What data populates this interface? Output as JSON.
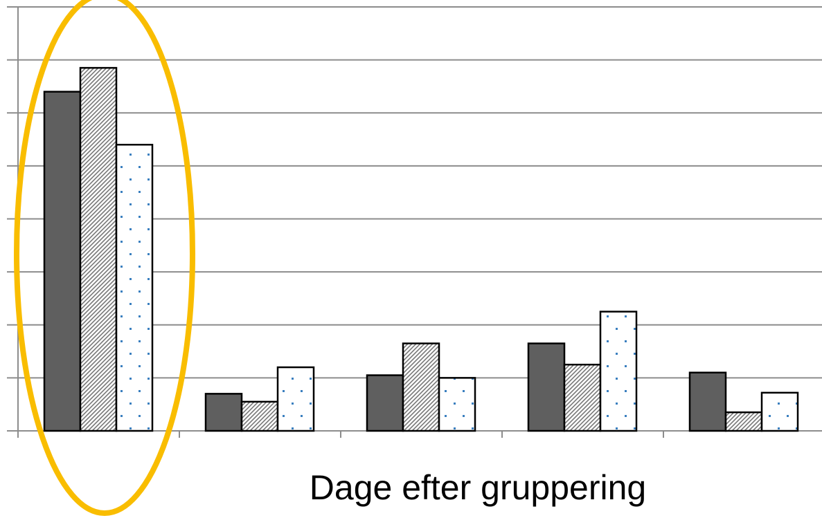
{
  "chart_data": {
    "type": "bar",
    "xlabel": "Dage efter gruppering",
    "ylabel": "",
    "title": "",
    "categories": [
      "",
      "",
      "",
      "",
      ""
    ],
    "series": [
      {
        "pattern": "solid-dark",
        "color": "#5f5f5f",
        "values": [
          6.4,
          0.7,
          1.05,
          1.65,
          1.1
        ]
      },
      {
        "pattern": "diagonal-hatch",
        "color": "#ffffff",
        "values": [
          6.85,
          0.55,
          1.65,
          1.25,
          0.35
        ]
      },
      {
        "pattern": "dotted",
        "color": "#ffffff",
        "values": [
          5.4,
          1.2,
          1.0,
          2.25,
          0.72
        ]
      }
    ],
    "ylim": [
      0,
      8
    ],
    "gridlines": 8,
    "grid": true,
    "legend": "none",
    "highlight": {
      "shape": "ellipse",
      "color": "#f9bd00",
      "category_index": 0
    }
  }
}
